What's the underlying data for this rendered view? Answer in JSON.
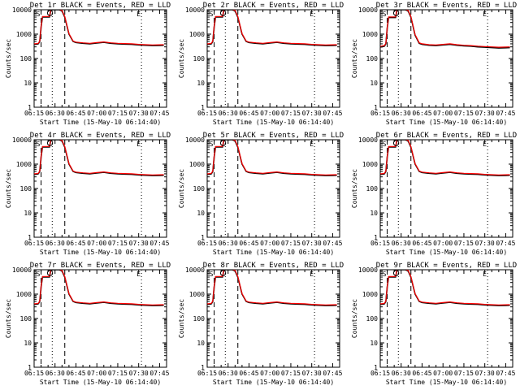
{
  "colors": {
    "events": "#000000",
    "lld": "#ff0000",
    "background": "#ffffff",
    "axes": "#000000"
  },
  "x_tick_labels": [
    "06:15",
    "06:30",
    "06:45",
    "07:00",
    "07:15",
    "07:30",
    "07:45"
  ],
  "y_tick_labels": [
    "1",
    "10",
    "100",
    "1000",
    "10000"
  ],
  "y_axis_label": "Counts/sec",
  "x_axis_label": "Start Time (15-May-10 06:14:40)",
  "marker_letters": {
    "start": "S",
    "end": "E"
  },
  "chart_data": [
    {
      "type": "line",
      "title": "Det 1r BLACK = Events, RED = LLD",
      "xlabel": "Start Time (15-May-10 06:14:40)",
      "ylabel": "Counts/sec",
      "yscale": "log",
      "ylim": [
        1,
        10000
      ],
      "xlim_minutes": [
        0,
        95
      ],
      "time_x": [
        0,
        1,
        2,
        3,
        4,
        5,
        6,
        8,
        9,
        10,
        11,
        12,
        13,
        15,
        18,
        20,
        22,
        25,
        28,
        30,
        35,
        40,
        45,
        50,
        55,
        60,
        65,
        70,
        75,
        80,
        85,
        90,
        93
      ],
      "series": [
        {
          "name": "Events",
          "values": [
            380,
            380,
            390,
            400,
            500,
            2000,
            5000,
            5000,
            5000,
            5000,
            5000,
            10000,
            10000,
            10000,
            10000,
            9000,
            5000,
            1000,
            500,
            450,
            420,
            400,
            430,
            460,
            420,
            400,
            390,
            380,
            360,
            350,
            340,
            345,
            350
          ]
        },
        {
          "name": "LLD",
          "values": [
            400,
            400,
            410,
            420,
            520,
            2100,
            5300,
            5300,
            5300,
            5300,
            5300,
            10500,
            10500,
            10500,
            10500,
            9500,
            5300,
            1050,
            520,
            470,
            440,
            420,
            450,
            480,
            440,
            420,
            410,
            400,
            380,
            370,
            360,
            365,
            370
          ]
        }
      ],
      "dashed_lines_x": [
        5,
        22
      ],
      "dotted_lines_x": [
        13,
        77
      ]
    },
    {
      "type": "line",
      "title": "Det 2r BLACK = Events, RED = LLD",
      "xlabel": "Start Time (15-May-10 06:14:40)",
      "ylabel": "Counts/sec",
      "yscale": "log",
      "ylim": [
        1,
        10000
      ],
      "xlim_minutes": [
        0,
        95
      ],
      "time_x": [
        0,
        1,
        2,
        3,
        4,
        5,
        6,
        8,
        9,
        10,
        11,
        12,
        13,
        15,
        18,
        20,
        22,
        25,
        28,
        30,
        35,
        40,
        45,
        50,
        55,
        60,
        65,
        70,
        75,
        80,
        85,
        90,
        93
      ],
      "series": [
        {
          "name": "Events",
          "values": [
            380,
            380,
            390,
            400,
            500,
            2000,
            5000,
            5000,
            5000,
            5000,
            5000,
            10000,
            10000,
            10000,
            10000,
            9000,
            5000,
            1000,
            500,
            450,
            420,
            400,
            430,
            460,
            420,
            400,
            390,
            380,
            360,
            350,
            340,
            345,
            350
          ]
        },
        {
          "name": "LLD",
          "values": [
            400,
            400,
            410,
            420,
            520,
            2100,
            5300,
            5300,
            5300,
            5300,
            5300,
            10500,
            10500,
            10500,
            10500,
            9500,
            5300,
            1050,
            520,
            470,
            440,
            420,
            450,
            480,
            440,
            420,
            410,
            400,
            380,
            370,
            360,
            365,
            370
          ]
        }
      ],
      "dashed_lines_x": [
        5,
        22
      ],
      "dotted_lines_x": [
        13,
        77
      ]
    },
    {
      "type": "line",
      "title": "Det 3r BLACK = Events, RED = LLD",
      "xlabel": "Start Time (15-May-10 06:14:40)",
      "ylabel": "Counts/sec",
      "yscale": "log",
      "ylim": [
        1,
        10000
      ],
      "xlim_minutes": [
        0,
        95
      ],
      "time_x": [
        0,
        1,
        2,
        3,
        4,
        5,
        6,
        8,
        9,
        10,
        11,
        12,
        13,
        15,
        18,
        20,
        22,
        25,
        28,
        30,
        35,
        40,
        45,
        50,
        55,
        60,
        65,
        70,
        75,
        80,
        85,
        90,
        93
      ],
      "series": [
        {
          "name": "Events",
          "values": [
            300,
            300,
            310,
            320,
            400,
            1800,
            4800,
            4800,
            4800,
            4800,
            4800,
            10000,
            10000,
            10000,
            10000,
            9000,
            5000,
            900,
            420,
            380,
            350,
            340,
            360,
            380,
            350,
            330,
            320,
            300,
            290,
            280,
            270,
            275,
            280
          ]
        },
        {
          "name": "LLD",
          "values": [
            320,
            320,
            330,
            340,
            420,
            1900,
            5100,
            5100,
            5100,
            5100,
            5100,
            10500,
            10500,
            10500,
            10500,
            9500,
            5300,
            950,
            440,
            400,
            370,
            360,
            380,
            400,
            370,
            350,
            340,
            320,
            310,
            300,
            290,
            295,
            300
          ]
        }
      ],
      "dashed_lines_x": [
        5,
        22
      ],
      "dotted_lines_x": [
        13,
        77
      ]
    },
    {
      "type": "line",
      "title": "Det 4r BLACK = Events, RED = LLD",
      "xlabel": "Start Time (15-May-10 06:14:40)",
      "ylabel": "Counts/sec",
      "yscale": "log",
      "ylim": [
        1,
        10000
      ],
      "xlim_minutes": [
        0,
        95
      ],
      "time_x": [
        0,
        1,
        2,
        3,
        4,
        5,
        6,
        8,
        9,
        10,
        11,
        12,
        13,
        15,
        18,
        20,
        22,
        25,
        28,
        30,
        35,
        40,
        45,
        50,
        55,
        60,
        65,
        70,
        75,
        80,
        85,
        90,
        93
      ],
      "series": [
        {
          "name": "Events",
          "values": [
            380,
            380,
            390,
            400,
            500,
            2000,
            5000,
            5000,
            5000,
            5000,
            5000,
            10000,
            10000,
            10000,
            10000,
            9000,
            5000,
            1000,
            500,
            450,
            420,
            400,
            430,
            460,
            420,
            400,
            390,
            380,
            360,
            350,
            340,
            345,
            350
          ]
        },
        {
          "name": "LLD",
          "values": [
            400,
            400,
            410,
            420,
            520,
            2100,
            5300,
            5300,
            5300,
            5300,
            5300,
            10500,
            10500,
            10500,
            10500,
            9500,
            5300,
            1050,
            520,
            470,
            440,
            420,
            450,
            480,
            440,
            420,
            410,
            400,
            380,
            370,
            360,
            365,
            370
          ]
        }
      ],
      "dashed_lines_x": [
        5,
        22
      ],
      "dotted_lines_x": [
        13,
        77
      ]
    },
    {
      "type": "line",
      "title": "Det 5r BLACK = Events, RED = LLD",
      "xlabel": "Start Time (15-May-10 06:14:40)",
      "ylabel": "Counts/sec",
      "yscale": "log",
      "ylim": [
        1,
        10000
      ],
      "xlim_minutes": [
        0,
        95
      ],
      "time_x": [
        0,
        1,
        2,
        3,
        4,
        5,
        6,
        8,
        9,
        10,
        11,
        12,
        13,
        15,
        18,
        20,
        22,
        25,
        28,
        30,
        35,
        40,
        45,
        50,
        55,
        60,
        65,
        70,
        75,
        80,
        85,
        90,
        93
      ],
      "series": [
        {
          "name": "Events",
          "values": [
            380,
            380,
            390,
            400,
            500,
            2000,
            5000,
            5000,
            5000,
            5000,
            5000,
            10000,
            10000,
            10000,
            10000,
            9000,
            5000,
            1000,
            500,
            450,
            420,
            400,
            430,
            460,
            420,
            400,
            390,
            380,
            360,
            350,
            340,
            345,
            350
          ]
        },
        {
          "name": "LLD",
          "values": [
            400,
            400,
            410,
            420,
            520,
            2100,
            5300,
            5300,
            5300,
            5300,
            5300,
            10500,
            10500,
            10500,
            10500,
            9500,
            5300,
            1050,
            520,
            470,
            440,
            420,
            450,
            480,
            440,
            420,
            410,
            400,
            380,
            370,
            360,
            365,
            370
          ]
        }
      ],
      "dashed_lines_x": [
        5,
        22
      ],
      "dotted_lines_x": [
        13,
        77
      ]
    },
    {
      "type": "line",
      "title": "Det 6r BLACK = Events, RED = LLD",
      "xlabel": "Start Time (15-May-10 06:14:40)",
      "ylabel": "Counts/sec",
      "yscale": "log",
      "ylim": [
        1,
        10000
      ],
      "xlim_minutes": [
        0,
        95
      ],
      "time_x": [
        0,
        1,
        2,
        3,
        4,
        5,
        6,
        8,
        9,
        10,
        11,
        12,
        13,
        15,
        18,
        20,
        22,
        25,
        28,
        30,
        35,
        40,
        45,
        50,
        55,
        60,
        65,
        70,
        75,
        80,
        85,
        90,
        93
      ],
      "series": [
        {
          "name": "Events",
          "values": [
            380,
            380,
            390,
            400,
            500,
            2000,
            5000,
            5000,
            5000,
            5000,
            5000,
            10000,
            10000,
            10000,
            10000,
            9000,
            5000,
            1000,
            500,
            450,
            420,
            400,
            430,
            460,
            420,
            400,
            390,
            380,
            360,
            350,
            340,
            345,
            350
          ]
        },
        {
          "name": "LLD",
          "values": [
            400,
            400,
            410,
            420,
            520,
            2100,
            5300,
            5300,
            5300,
            5300,
            5300,
            10500,
            10500,
            10500,
            10500,
            9500,
            5300,
            1050,
            520,
            470,
            440,
            420,
            450,
            480,
            440,
            420,
            410,
            400,
            380,
            370,
            360,
            365,
            370
          ]
        }
      ],
      "dashed_lines_x": [
        5,
        22
      ],
      "dotted_lines_x": [
        13,
        77
      ]
    },
    {
      "type": "line",
      "title": "Det 7r BLACK = Events, RED = LLD",
      "xlabel": "Start Time (15-May-10 06:14:40)",
      "ylabel": "Counts/sec",
      "yscale": "log",
      "ylim": [
        1,
        10000
      ],
      "xlim_minutes": [
        0,
        95
      ],
      "time_x": [
        0,
        1,
        2,
        3,
        4,
        5,
        6,
        8,
        9,
        10,
        11,
        12,
        13,
        15,
        18,
        20,
        22,
        25,
        28,
        30,
        35,
        40,
        45,
        50,
        55,
        60,
        65,
        70,
        75,
        80,
        85,
        90,
        93
      ],
      "series": [
        {
          "name": "Events",
          "values": [
            380,
            380,
            390,
            400,
            500,
            2000,
            5000,
            5000,
            5000,
            5000,
            5000,
            10000,
            10000,
            10000,
            10000,
            9000,
            5000,
            1000,
            500,
            450,
            420,
            400,
            430,
            460,
            420,
            400,
            390,
            380,
            360,
            350,
            340,
            345,
            350
          ]
        },
        {
          "name": "LLD",
          "values": [
            400,
            400,
            410,
            420,
            520,
            2100,
            5300,
            5300,
            5300,
            5300,
            5300,
            10500,
            10500,
            10500,
            10500,
            9500,
            5300,
            1050,
            520,
            470,
            440,
            420,
            450,
            480,
            440,
            420,
            410,
            400,
            380,
            370,
            360,
            365,
            370
          ]
        }
      ],
      "dashed_lines_x": [
        5,
        22
      ],
      "dotted_lines_x": [
        13,
        77
      ]
    },
    {
      "type": "line",
      "title": "Det 8r BLACK = Events, RED = LLD",
      "xlabel": "Start Time (15-May-10 06:14:40)",
      "ylabel": "Counts/sec",
      "yscale": "log",
      "ylim": [
        1,
        10000
      ],
      "xlim_minutes": [
        0,
        95
      ],
      "time_x": [
        0,
        1,
        2,
        3,
        4,
        5,
        6,
        8,
        9,
        10,
        11,
        12,
        13,
        15,
        18,
        20,
        22,
        25,
        28,
        30,
        35,
        40,
        45,
        50,
        55,
        60,
        65,
        70,
        75,
        80,
        85,
        90,
        93
      ],
      "series": [
        {
          "name": "Events",
          "values": [
            380,
            380,
            390,
            400,
            500,
            2000,
            5000,
            5000,
            5000,
            5000,
            5000,
            10000,
            10000,
            10000,
            10000,
            9000,
            5000,
            1000,
            500,
            450,
            420,
            400,
            430,
            460,
            420,
            400,
            390,
            380,
            360,
            350,
            340,
            345,
            350
          ]
        },
        {
          "name": "LLD",
          "values": [
            400,
            400,
            410,
            420,
            520,
            2100,
            5300,
            5300,
            5300,
            5300,
            5300,
            10500,
            10500,
            10500,
            10500,
            9500,
            5300,
            1050,
            520,
            470,
            440,
            420,
            450,
            480,
            440,
            420,
            410,
            400,
            380,
            370,
            360,
            365,
            370
          ]
        }
      ],
      "dashed_lines_x": [
        5,
        22
      ],
      "dotted_lines_x": [
        13,
        77
      ]
    },
    {
      "type": "line",
      "title": "Det 9r BLACK = Events, RED = LLD",
      "xlabel": "Start Time (15-May-10 06:14:40)",
      "ylabel": "Counts/sec",
      "yscale": "log",
      "ylim": [
        1,
        10000
      ],
      "xlim_minutes": [
        0,
        95
      ],
      "time_x": [
        0,
        1,
        2,
        3,
        4,
        5,
        6,
        8,
        9,
        10,
        11,
        12,
        13,
        15,
        18,
        20,
        22,
        25,
        28,
        30,
        35,
        40,
        45,
        50,
        55,
        60,
        65,
        70,
        75,
        80,
        85,
        90,
        93
      ],
      "series": [
        {
          "name": "Events",
          "values": [
            380,
            380,
            390,
            400,
            500,
            2000,
            5000,
            5000,
            5000,
            5000,
            5000,
            10000,
            10000,
            10000,
            10000,
            9000,
            5000,
            1000,
            500,
            450,
            420,
            400,
            430,
            460,
            420,
            400,
            390,
            380,
            360,
            350,
            340,
            345,
            350
          ]
        },
        {
          "name": "LLD",
          "values": [
            400,
            400,
            410,
            420,
            520,
            2100,
            5300,
            5300,
            5300,
            5300,
            5300,
            10500,
            10500,
            10500,
            10500,
            9500,
            5300,
            1050,
            520,
            470,
            440,
            420,
            450,
            480,
            440,
            420,
            410,
            400,
            380,
            370,
            360,
            365,
            370
          ]
        }
      ],
      "dashed_lines_x": [
        5,
        22
      ],
      "dotted_lines_x": [
        13,
        77
      ]
    }
  ]
}
